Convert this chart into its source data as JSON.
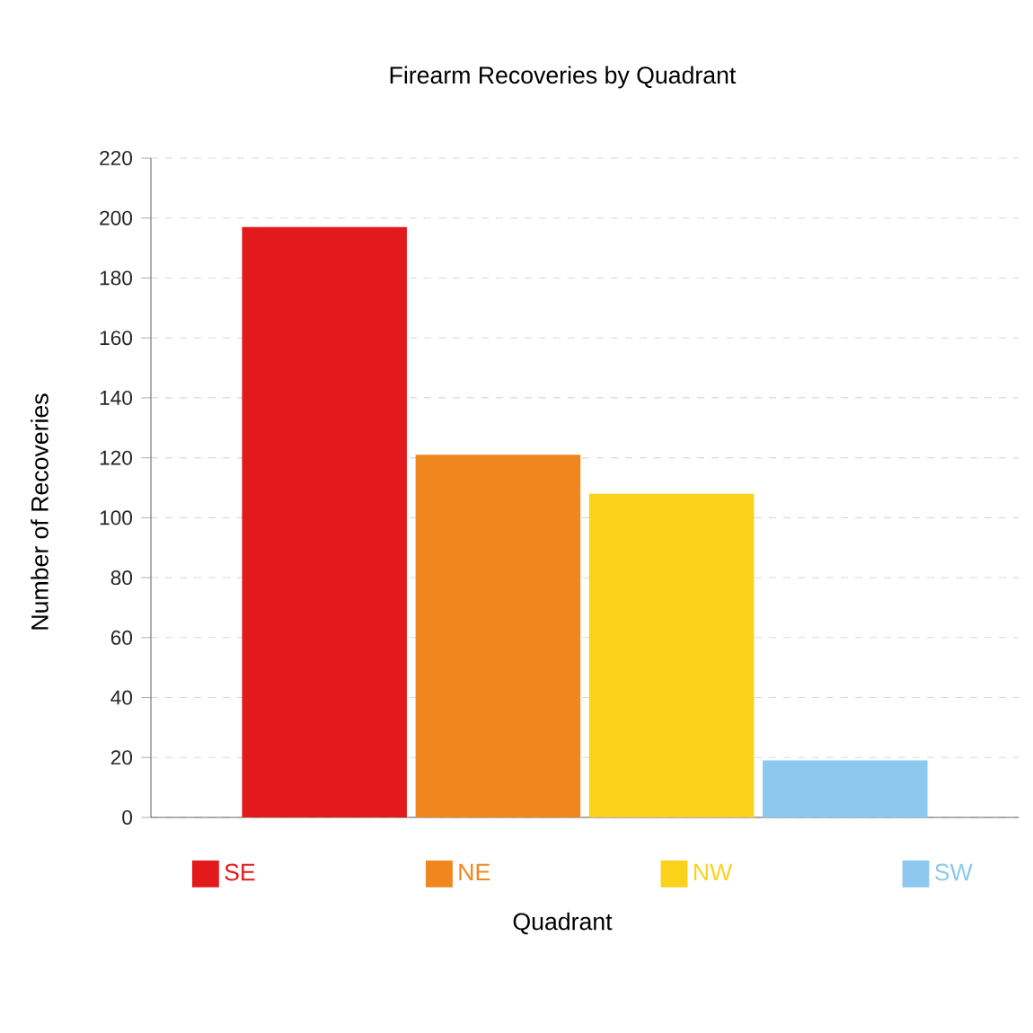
{
  "chart_data": {
    "type": "bar",
    "title": "Firearm Recoveries by Quadrant",
    "xlabel": "Quadrant",
    "ylabel": "Number of Recoveries",
    "categories": [
      null,
      null,
      null,
      null
    ],
    "series": [
      {
        "name": "SE",
        "color": "#e31a1c",
        "values": [
          197,
          null,
          null,
          null
        ]
      },
      {
        "name": "NE",
        "color": "#f0871e",
        "values": [
          null,
          121,
          null,
          null
        ]
      },
      {
        "name": "NW",
        "color": "#fad21a",
        "values": [
          null,
          null,
          108,
          null
        ]
      },
      {
        "name": "SW",
        "color": "#8cc8f0",
        "values": [
          null,
          null,
          null,
          19
        ]
      }
    ],
    "ylim": [
      0,
      220
    ],
    "yticks": [
      0,
      20,
      40,
      60,
      80,
      100,
      120,
      140,
      160,
      180,
      200,
      220
    ],
    "grid": "y",
    "legend": "bottom"
  }
}
